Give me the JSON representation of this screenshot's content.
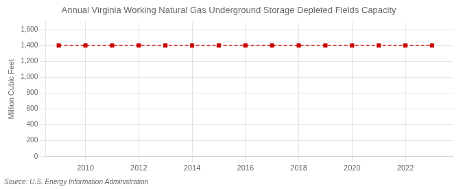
{
  "chart_data": {
    "type": "line",
    "title": "Annual Virginia Working Natural Gas Underground Storage Depleted Fields Capacity",
    "ylabel": "Million Cubic Feet",
    "annotations": [
      "Source: U.S. Energy Information Administration"
    ],
    "x": [
      2009,
      2010,
      2011,
      2012,
      2013,
      2014,
      2015,
      2016,
      2017,
      2018,
      2019,
      2020,
      2021,
      2022,
      2023
    ],
    "values": [
      1400,
      1400,
      1400,
      1400,
      1400,
      1400,
      1400,
      1400,
      1400,
      1400,
      1400,
      1400,
      1400,
      1400,
      1400
    ],
    "color": "#cc0000",
    "marker": "square",
    "line_style": "dashed",
    "xlim": [
      2008.5,
      2023.8
    ],
    "xticks": [
      2010,
      2012,
      2014,
      2016,
      2018,
      2020,
      2022
    ],
    "ylim": [
      0,
      1700
    ],
    "yticks": [
      0,
      200,
      400,
      600,
      800,
      {
        "value": 1000,
        "label": "1,000"
      },
      {
        "value": 1200,
        "label": "1,200"
      },
      {
        "value": 1400,
        "label": "1,400"
      },
      {
        "value": 1600,
        "label": "1,600"
      }
    ],
    "grid": true
  }
}
